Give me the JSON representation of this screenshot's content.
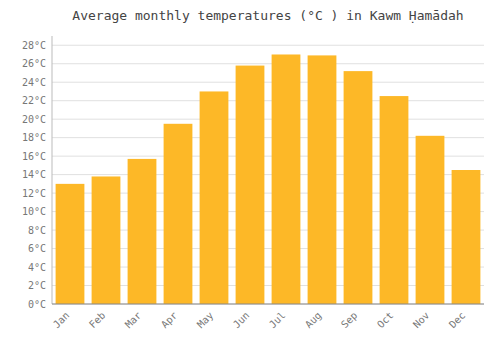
{
  "chart_data": {
    "type": "bar",
    "title": "Average monthly temperatures (°C ) in Kawm Ḥamādah",
    "categories": [
      "Jan",
      "Feb",
      "Mar",
      "Apr",
      "May",
      "Jun",
      "Jul",
      "Aug",
      "Sep",
      "Oct",
      "Nov",
      "Dec"
    ],
    "values": [
      13.0,
      13.8,
      15.7,
      19.5,
      23.0,
      25.8,
      27.0,
      26.9,
      25.2,
      22.5,
      18.2,
      14.5
    ],
    "color": "#FDB827",
    "ylim": [
      0,
      29
    ],
    "yticks": [
      {
        "value": 0,
        "label": "0°C"
      },
      {
        "value": 2,
        "label": "2°C"
      },
      {
        "value": 4,
        "label": "4°C"
      },
      {
        "value": 6,
        "label": "6°C"
      },
      {
        "value": 8,
        "label": "8°C"
      },
      {
        "value": 10,
        "label": "10°C"
      },
      {
        "value": 12,
        "label": "12°C"
      },
      {
        "value": 14,
        "label": "14°C"
      },
      {
        "value": 16,
        "label": "16°C"
      },
      {
        "value": 18,
        "label": "18°C"
      },
      {
        "value": 20,
        "label": "20°C"
      },
      {
        "value": 22,
        "label": "22°C"
      },
      {
        "value": 24,
        "label": "24°C"
      },
      {
        "value": 26,
        "label": "26°C"
      },
      {
        "value": 28,
        "label": "28°C"
      }
    ],
    "grid": true
  }
}
